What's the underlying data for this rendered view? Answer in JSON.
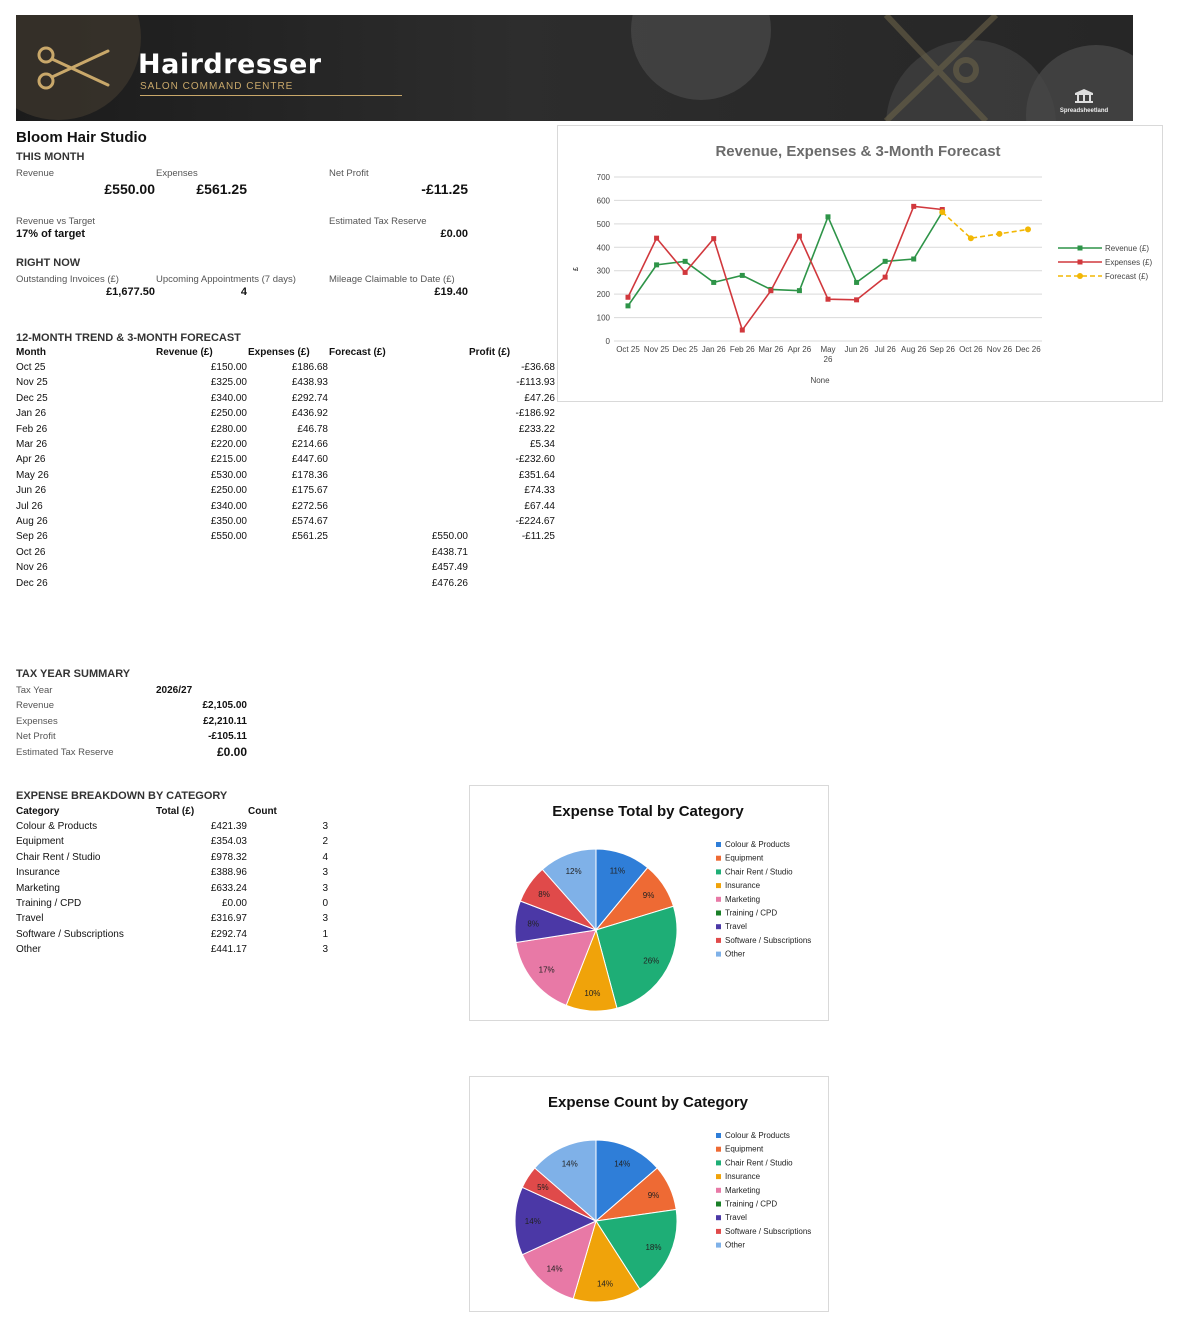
{
  "banner": {
    "title": "Hairdresser",
    "subtitle": "SALON COMMAND CENTRE",
    "brand": "Spreadsheetland",
    "accent_color": "#c9a86a",
    "logo_icon": "scissors-icon"
  },
  "business_name": "Bloom Hair Studio",
  "this_month": {
    "heading": "THIS MONTH",
    "revenue_label": "Revenue",
    "revenue_value": "£550.00",
    "expenses_label": "Expenses",
    "expenses_value": "£561.25",
    "net_profit_label": "Net Profit",
    "net_profit_value": "-£11.25",
    "target_label": "Revenue vs Target",
    "target_value": "17% of target",
    "tax_label": "Estimated Tax Reserve",
    "tax_value": "£0.00"
  },
  "right_now": {
    "heading": "RIGHT NOW",
    "invoices_label": "Outstanding Invoices (£)",
    "invoices_value": "£1,677.50",
    "appointments_label": "Upcoming Appointments (7 days)",
    "appointments_value": "4",
    "mileage_label": "Mileage Claimable to Date (£)",
    "mileage_value": "£19.40"
  },
  "trend": {
    "heading": "12-MONTH TREND & 3-MONTH FORECAST",
    "headers": [
      "Month",
      "Revenue (£)",
      "Expenses (£)",
      "Forecast (£)",
      "Profit (£)"
    ],
    "rows": [
      [
        "Oct 25",
        "£150.00",
        "£186.68",
        "",
        "-£36.68"
      ],
      [
        "Nov 25",
        "£325.00",
        "£438.93",
        "",
        "-£113.93"
      ],
      [
        "Dec 25",
        "£340.00",
        "£292.74",
        "",
        "£47.26"
      ],
      [
        "Jan 26",
        "£250.00",
        "£436.92",
        "",
        "-£186.92"
      ],
      [
        "Feb 26",
        "£280.00",
        "£46.78",
        "",
        "£233.22"
      ],
      [
        "Mar 26",
        "£220.00",
        "£214.66",
        "",
        "£5.34"
      ],
      [
        "Apr 26",
        "£215.00",
        "£447.60",
        "",
        "-£232.60"
      ],
      [
        "May 26",
        "£530.00",
        "£178.36",
        "",
        "£351.64"
      ],
      [
        "Jun 26",
        "£250.00",
        "£175.67",
        "",
        "£74.33"
      ],
      [
        "Jul 26",
        "£340.00",
        "£272.56",
        "",
        "£67.44"
      ],
      [
        "Aug 26",
        "£350.00",
        "£574.67",
        "",
        "-£224.67"
      ],
      [
        "Sep 26",
        "£550.00",
        "£561.25",
        "£550.00",
        "-£11.25"
      ],
      [
        "Oct 26",
        "",
        "",
        "£438.71",
        ""
      ],
      [
        "Nov 26",
        "",
        "",
        "£457.49",
        ""
      ],
      [
        "Dec 26",
        "",
        "",
        "£476.26",
        ""
      ]
    ]
  },
  "tax_year": {
    "heading": "TAX YEAR SUMMARY",
    "rows": [
      [
        "Tax Year",
        "2026/27"
      ],
      [
        "Revenue",
        "£2,105.00"
      ],
      [
        "Expenses",
        "£2,210.11"
      ],
      [
        "Net Profit",
        "-£105.11"
      ],
      [
        "Estimated Tax Reserve",
        "£0.00"
      ]
    ]
  },
  "expense_breakdown": {
    "heading": "EXPENSE BREAKDOWN BY CATEGORY",
    "headers": [
      "Category",
      "Total (£)",
      "Count"
    ],
    "rows": [
      [
        "Colour & Products",
        "£421.39",
        "3"
      ],
      [
        "Equipment",
        "£354.03",
        "2"
      ],
      [
        "Chair Rent / Studio",
        "£978.32",
        "4"
      ],
      [
        "Insurance",
        "£388.96",
        "3"
      ],
      [
        "Marketing",
        "£633.24",
        "3"
      ],
      [
        "Training / CPD",
        "£0.00",
        "0"
      ],
      [
        "Travel",
        "£316.97",
        "3"
      ],
      [
        "Software / Subscriptions",
        "£292.74",
        "1"
      ],
      [
        "Other",
        "£441.17",
        "3"
      ]
    ]
  },
  "chart_data": [
    {
      "type": "line",
      "title": "Revenue, Expenses & 3-Month Forecast",
      "xlabel": "None",
      "ylabel": "£",
      "ylim": [
        0,
        700
      ],
      "yticks": [
        0,
        100,
        200,
        300,
        400,
        500,
        600,
        700
      ],
      "grid": true,
      "legend": "right",
      "categories": [
        "Oct 25",
        "Nov 25",
        "Dec 25",
        "Jan 26",
        "Feb 26",
        "Mar 26",
        "Apr 26",
        "May 26",
        "Jun 26",
        "Jul 26",
        "Aug 26",
        "Sep 26",
        "Oct 26",
        "Nov 26",
        "Dec 26"
      ],
      "series": [
        {
          "name": "Revenue (£)",
          "color": "#2e9448",
          "dashed": false,
          "values": [
            150,
            325,
            340,
            250,
            280,
            220,
            215,
            530,
            250,
            340,
            350,
            550,
            null,
            null,
            null
          ]
        },
        {
          "name": "Expenses (£)",
          "color": "#d1383d",
          "dashed": false,
          "values": [
            186.68,
            438.93,
            292.74,
            436.92,
            46.78,
            214.66,
            447.6,
            178.36,
            175.67,
            272.56,
            574.67,
            561.25,
            null,
            null,
            null
          ]
        },
        {
          "name": "Forecast (£)",
          "color": "#f2b705",
          "dashed": true,
          "values": [
            null,
            null,
            null,
            null,
            null,
            null,
            null,
            null,
            null,
            null,
            null,
            550,
            438.71,
            457.49,
            476.26
          ]
        }
      ]
    },
    {
      "type": "pie",
      "title": "Expense Total by Category",
      "legend": "right",
      "categories": [
        "Colour & Products",
        "Equipment",
        "Chair Rent / Studio",
        "Insurance",
        "Marketing",
        "Training / CPD",
        "Travel",
        "Software / Subscriptions",
        "Other"
      ],
      "values": [
        421.39,
        354.03,
        978.32,
        388.96,
        633.24,
        0,
        316.97,
        292.74,
        441.17
      ],
      "data_labels": [
        "11%",
        "9%",
        "26%",
        "10%",
        "17%",
        "",
        "8%",
        "8%",
        "12%"
      ],
      "colors": [
        "#2f7ed8",
        "#ee6a34",
        "#1eae76",
        "#f0a30a",
        "#e879a6",
        "#1a7f27",
        "#4b38a6",
        "#e04a4a",
        "#7fb1e8"
      ]
    },
    {
      "type": "pie",
      "title": "Expense Count by Category",
      "legend": "right",
      "categories": [
        "Colour & Products",
        "Equipment",
        "Chair Rent / Studio",
        "Insurance",
        "Marketing",
        "Training / CPD",
        "Travel",
        "Software / Subscriptions",
        "Other"
      ],
      "values": [
        3,
        2,
        4,
        3,
        3,
        0,
        3,
        1,
        3
      ],
      "data_labels": [
        "14%",
        "9%",
        "18%",
        "14%",
        "14%",
        "",
        "14%",
        "5%",
        "14%"
      ],
      "colors": [
        "#2f7ed8",
        "#ee6a34",
        "#1eae76",
        "#f0a30a",
        "#e879a6",
        "#1a7f27",
        "#4b38a6",
        "#e04a4a",
        "#7fb1e8"
      ]
    }
  ]
}
